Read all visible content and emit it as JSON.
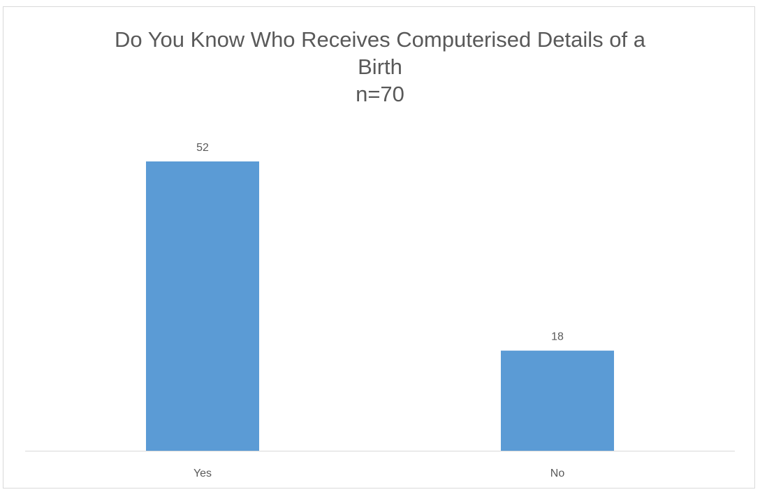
{
  "chart_data": {
    "type": "bar",
    "title_lines": [
      "Do You Know Who Receives Computerised Details of a",
      "Birth",
      "n=70"
    ],
    "categories": [
      "Yes",
      "No"
    ],
    "values": [
      52,
      18
    ],
    "data_labels": [
      "52",
      "18"
    ],
    "ylim": [
      0,
      60
    ],
    "grid": false,
    "legend": "none",
    "bar_color": "#5b9bd5",
    "axis_color": "#d9d9d9",
    "text_color": "#595959"
  }
}
